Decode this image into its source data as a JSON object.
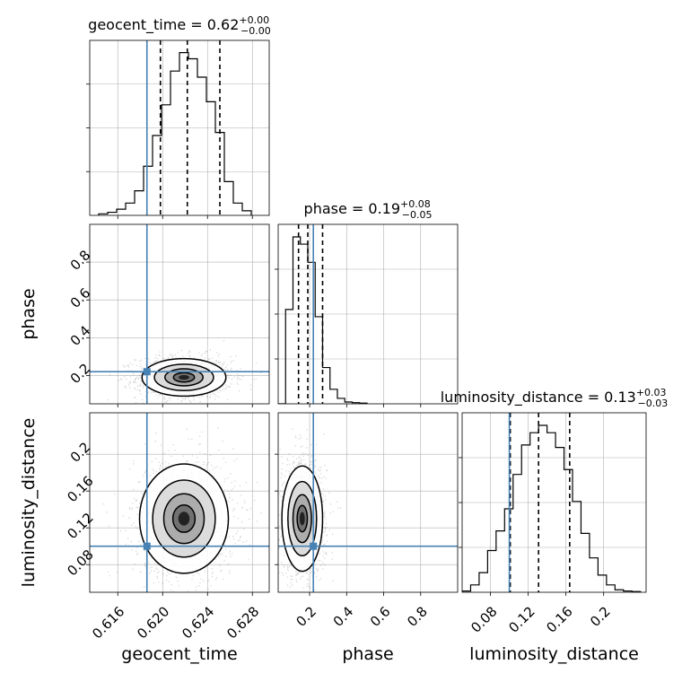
{
  "colors": {
    "truth": "#4682b4",
    "hist": "#000000",
    "grid": "#b0b0b0",
    "background": "#ffffff"
  },
  "chart_data": [
    {
      "type": "histogram",
      "parameter": "geocent_time",
      "title": {
        "base": "geocent_time = 0.62",
        "sup": "+0.00",
        "sub": "−0.00"
      },
      "x_range": [
        0.6135,
        0.6295
      ],
      "x_ticks": [
        0.616,
        0.62,
        0.624,
        0.628
      ],
      "truth": 0.6186,
      "quantiles": [
        0.6198,
        0.6222,
        0.6251
      ],
      "bin_edges": [
        0.6143,
        0.6151,
        0.6159,
        0.6167,
        0.6175,
        0.6183,
        0.6191,
        0.6199,
        0.6207,
        0.6215,
        0.6223,
        0.6231,
        0.6239,
        0.6247,
        0.6255,
        0.6263,
        0.6271,
        0.6279
      ],
      "counts": [
        0.5,
        1,
        2,
        4,
        8,
        16,
        26,
        36,
        47,
        53,
        51,
        45,
        37,
        27,
        11,
        4,
        1.5
      ]
    },
    {
      "type": "scatter_contour",
      "x_parameter": "geocent_time",
      "y_parameter": "phase",
      "x_range": [
        0.6135,
        0.6295
      ],
      "y_range": [
        0.05,
        1.0
      ],
      "y_ticks": [
        0.2,
        0.4,
        0.6,
        0.8
      ],
      "y_label": "phase",
      "truth": {
        "x": 0.6186,
        "y": 0.22
      },
      "density_peak": {
        "x": 0.6219,
        "y": 0.19
      },
      "density_spread": {
        "x": 0.0017,
        "y": 0.045
      }
    },
    {
      "type": "histogram",
      "parameter": "phase",
      "title": {
        "base": "phase = 0.19",
        "sup": "+0.08",
        "sub": "−0.05"
      },
      "x_range": [
        0.03,
        1.0
      ],
      "x_ticks": [
        0.2,
        0.4,
        0.6,
        0.8
      ],
      "truth": 0.22,
      "quantiles": [
        0.14,
        0.19,
        0.27
      ],
      "bin_edges": [
        0.03,
        0.07,
        0.11,
        0.15,
        0.19,
        0.23,
        0.27,
        0.31,
        0.35,
        0.39,
        0.43,
        0.47,
        0.51
      ],
      "counts": [
        0,
        26,
        46,
        44,
        39,
        24,
        10,
        4,
        1.5,
        0.5,
        0.3,
        0.2
      ]
    },
    {
      "type": "scatter_contour",
      "x_parameter": "geocent_time",
      "y_parameter": "luminosity_distance",
      "x_range": [
        0.6135,
        0.6295
      ],
      "y_range": [
        0.05,
        0.245
      ],
      "x_ticks": [
        0.616,
        0.62,
        0.624,
        0.628
      ],
      "y_ticks": [
        0.08,
        0.12,
        0.16,
        0.2
      ],
      "x_label": "geocent_time",
      "y_label": "luminosity_distance",
      "truth": {
        "x": 0.6186,
        "y": 0.1
      },
      "density_peak": {
        "x": 0.6219,
        "y": 0.13
      },
      "density_spread": {
        "x": 0.0018,
        "y": 0.027
      }
    },
    {
      "type": "scatter_contour",
      "x_parameter": "phase",
      "y_parameter": "luminosity_distance",
      "x_range": [
        0.03,
        1.0
      ],
      "y_range": [
        0.05,
        0.245
      ],
      "x_ticks": [
        0.2,
        0.4,
        0.6,
        0.8
      ],
      "x_label": "phase",
      "truth": {
        "x": 0.22,
        "y": 0.1
      },
      "density_peak": {
        "x": 0.16,
        "y": 0.13
      },
      "density_spread": {
        "x": 0.05,
        "y": 0.026
      }
    },
    {
      "type": "histogram",
      "parameter": "luminosity_distance",
      "title": {
        "base": "luminosity_distance = 0.13",
        "sup": "+0.03",
        "sub": "−0.03"
      },
      "x_range": [
        0.05,
        0.245
      ],
      "x_ticks": [
        0.08,
        0.12,
        0.16,
        0.2
      ],
      "x_label": "luminosity_distance",
      "truth": 0.1,
      "quantiles": [
        0.101,
        0.131,
        0.164
      ],
      "bin_edges": [
        0.05,
        0.059,
        0.068,
        0.077,
        0.086,
        0.095,
        0.104,
        0.113,
        0.122,
        0.131,
        0.14,
        0.149,
        0.158,
        0.167,
        0.176,
        0.185,
        0.194,
        0.203,
        0.212,
        0.221,
        0.23,
        0.239
      ],
      "counts": [
        0.5,
        3,
        8,
        17,
        25,
        34,
        48,
        60,
        65,
        68,
        65,
        59,
        50,
        37,
        24,
        14,
        7,
        3,
        1,
        0.5,
        0.3
      ]
    }
  ]
}
